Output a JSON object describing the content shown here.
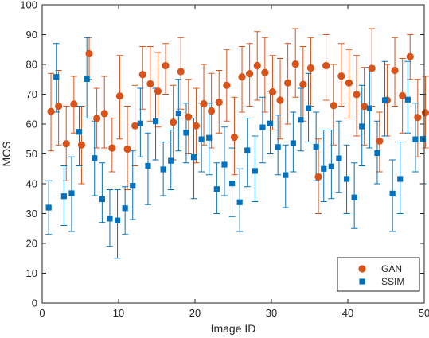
{
  "chart_data": {
    "type": "scatter",
    "xlabel": "Image ID",
    "ylabel": "MOS",
    "xlim": [
      0,
      50
    ],
    "ylim": [
      0,
      100
    ],
    "xticks": [
      0,
      10,
      20,
      30,
      40,
      50
    ],
    "yticks": [
      0,
      10,
      20,
      30,
      40,
      50,
      60,
      70,
      80,
      90,
      100
    ],
    "grid": false,
    "legend_position": "bottom-right",
    "series": [
      {
        "name": "GAN",
        "marker": "circle",
        "color": "#D95319",
        "x": [
          1,
          2,
          3,
          4,
          5,
          6,
          7,
          8,
          9,
          10,
          11,
          12,
          13,
          14,
          15,
          16,
          17,
          18,
          19,
          20,
          21,
          22,
          23,
          24,
          25,
          26,
          27,
          28,
          29,
          30,
          31,
          32,
          33,
          34,
          35,
          36,
          37,
          38,
          39,
          40,
          41,
          42,
          43,
          44,
          45,
          46,
          47,
          48,
          49,
          50
        ],
        "y": [
          64.2,
          66.0,
          53.4,
          66.7,
          53.0,
          83.6,
          61.9,
          63.5,
          52.0,
          69.4,
          51.6,
          59.4,
          76.6,
          73.5,
          71.0,
          79.6,
          60.6,
          77.6,
          62.4,
          59.4,
          66.8,
          64.4,
          67.3,
          73.0,
          55.6,
          75.8,
          76.9,
          79.6,
          77.3,
          70.8,
          68.0,
          73.8,
          80.1,
          73.3,
          78.8,
          42.3,
          79.6,
          66.2,
          76.1,
          73.8,
          69.9,
          65.9,
          78.7,
          54.3,
          68.0,
          78.0,
          69.5,
          82.6,
          62.2,
          63.8
        ],
        "lower": [
          51.0,
          53.0,
          41.0,
          57.0,
          40.0,
          75.0,
          52.0,
          52.0,
          44.0,
          55.0,
          38.0,
          46.0,
          65.0,
          61.0,
          59.0,
          70.0,
          48.0,
          65.0,
          50.0,
          47.0,
          53.0,
          52.0,
          57.0,
          61.0,
          43.0,
          64.0,
          66.0,
          68.0,
          64.0,
          58.0,
          55.0,
          60.0,
          69.0,
          61.0,
          66.0,
          30.0,
          68.0,
          53.0,
          66.0,
          62.0,
          56.0,
          53.0,
          66.0,
          44.0,
          56.0,
          66.0,
          57.0,
          75.0,
          49.0,
          52.0
        ],
        "upper": [
          77.0,
          78.0,
          66.0,
          76.0,
          66.0,
          89.0,
          72.0,
          76.0,
          62.0,
          83.0,
          66.0,
          73.0,
          86.0,
          86.0,
          84.0,
          87.0,
          73.0,
          89.0,
          75.0,
          72.0,
          80.0,
          77.0,
          78.0,
          85.0,
          69.0,
          86.0,
          87.0,
          91.0,
          89.0,
          83.0,
          82.0,
          87.0,
          92.0,
          86.0,
          89.0,
          55.0,
          90.0,
          80.0,
          87.0,
          85.0,
          83.0,
          79.0,
          92.0,
          64.0,
          80.0,
          89.0,
          82.0,
          90.0,
          75.0,
          76.0
        ]
      },
      {
        "name": "SSIM",
        "marker": "square",
        "color": "#0072BD",
        "x": [
          1,
          2,
          3,
          4,
          5,
          6,
          7,
          8,
          9,
          10,
          11,
          12,
          13,
          14,
          15,
          16,
          17,
          18,
          19,
          20,
          21,
          22,
          23,
          24,
          25,
          26,
          27,
          28,
          29,
          30,
          31,
          32,
          33,
          34,
          35,
          36,
          37,
          38,
          39,
          40,
          41,
          42,
          43,
          44,
          45,
          46,
          47,
          48,
          49,
          50
        ],
        "y": [
          32.0,
          75.8,
          35.8,
          36.8,
          57.4,
          75.1,
          48.6,
          34.8,
          28.3,
          27.7,
          31.8,
          39.3,
          60.2,
          46.0,
          60.9,
          44.8,
          47.7,
          63.6,
          57.1,
          48.9,
          54.9,
          55.4,
          38.2,
          46.4,
          40.1,
          33.8,
          51.2,
          44.3,
          58.9,
          60.2,
          52.3,
          42.9,
          53.6,
          61.4,
          65.3,
          52.4,
          45.0,
          45.8,
          48.5,
          41.6,
          35.4,
          59.2,
          65.3,
          50.3,
          68.0,
          36.7,
          41.6,
          68.2,
          54.9,
          55.0
        ],
        "lower": [
          23.0,
          64.0,
          26.0,
          24.0,
          46.0,
          62.0,
          36.0,
          27.0,
          19.0,
          15.0,
          23.0,
          28.0,
          49.0,
          33.0,
          48.0,
          36.0,
          38.0,
          51.0,
          47.0,
          35.0,
          44.0,
          43.0,
          30.0,
          36.0,
          29.0,
          24.0,
          39.0,
          34.0,
          47.0,
          50.0,
          43.0,
          32.0,
          44.0,
          51.0,
          54.0,
          41.0,
          34.0,
          35.0,
          37.0,
          30.0,
          25.0,
          46.0,
          52.0,
          40.0,
          56.0,
          24.0,
          30.0,
          57.0,
          44.0,
          40.0
        ],
        "upper": [
          41.0,
          87.0,
          46.0,
          49.0,
          66.0,
          89.0,
          61.0,
          47.0,
          38.0,
          38.0,
          39.0,
          51.0,
          72.0,
          57.0,
          72.0,
          54.0,
          58.0,
          75.0,
          67.0,
          62.0,
          67.0,
          67.0,
          47.0,
          59.0,
          52.0,
          45.0,
          62.0,
          56.0,
          69.0,
          71.0,
          63.0,
          53.0,
          64.0,
          72.0,
          77.0,
          64.0,
          58.0,
          58.0,
          61.0,
          53.0,
          47.0,
          73.0,
          79.0,
          61.0,
          81.0,
          48.0,
          54.0,
          81.0,
          67.0,
          70.0
        ]
      }
    ]
  }
}
